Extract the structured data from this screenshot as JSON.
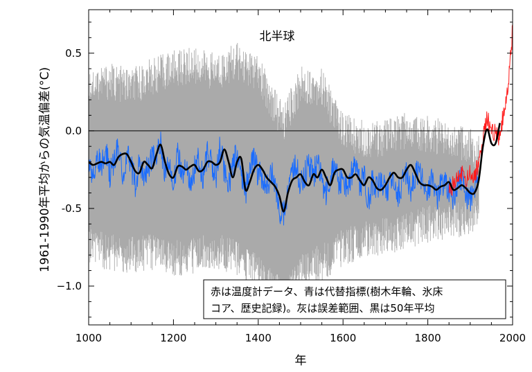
{
  "chart_data": {
    "type": "line",
    "title": "北半球",
    "xlabel": "年",
    "ylabel": "1961-1990年平均からの気温偏差(°C)",
    "xlim": [
      1000,
      2000
    ],
    "ylim": [
      -1.25,
      0.78
    ],
    "x_ticks": [
      1000,
      1200,
      1400,
      1600,
      1800,
      2000
    ],
    "x_tick_labels": [
      "1000",
      "1200",
      "1400",
      "1600",
      "1800",
      "2000"
    ],
    "y_ticks": [
      -1.0,
      -0.5,
      0.0,
      0.5
    ],
    "y_tick_labels": [
      "−1.0",
      "-0.5",
      "0.0",
      "0.5"
    ],
    "grid": false,
    "annotation": [
      "赤は温度計データ、青は代替指標(樹木年輪、氷床",
      "コア、歴史記録)。灰は誤差範囲、黒は50年平均"
    ],
    "series": [
      {
        "color": "#aaaaaa",
        "kind": "band",
        "x": [
          1000,
          1050,
          1100,
          1150,
          1200,
          1250,
          1300,
          1350,
          1400,
          1450,
          1460,
          1500,
          1550,
          1600,
          1650,
          1700,
          1750,
          1800,
          1850,
          1900,
          1920
        ],
        "upper": [
          0.3,
          0.32,
          0.28,
          0.35,
          0.4,
          0.42,
          0.38,
          0.45,
          0.36,
          0.1,
          0.05,
          0.3,
          0.28,
          0.0,
          -0.05,
          -0.05,
          0.0,
          -0.02,
          -0.05,
          -0.1,
          -0.15
        ],
        "lower": [
          -0.75,
          -0.78,
          -0.8,
          -0.78,
          -0.82,
          -0.8,
          -0.78,
          -0.82,
          -0.92,
          -1.05,
          -1.1,
          -0.9,
          -0.85,
          -0.75,
          -0.7,
          -0.68,
          -0.65,
          -0.6,
          -0.58,
          -0.55,
          -0.52
        ]
      },
      {
        "color": "#1a6cff",
        "kind": "line",
        "x": [
          1000,
          1010,
          1020,
          1030,
          1040,
          1050,
          1060,
          1070,
          1080,
          1090,
          1100,
          1110,
          1120,
          1130,
          1140,
          1150,
          1160,
          1170,
          1180,
          1190,
          1200,
          1210,
          1220,
          1230,
          1240,
          1250,
          1260,
          1270,
          1280,
          1290,
          1300,
          1310,
          1320,
          1330,
          1340,
          1350,
          1360,
          1370,
          1380,
          1390,
          1400,
          1410,
          1420,
          1430,
          1440,
          1450,
          1460,
          1470,
          1480,
          1490,
          1500,
          1510,
          1520,
          1530,
          1540,
          1550,
          1560,
          1570,
          1580,
          1590,
          1600,
          1610,
          1620,
          1630,
          1640,
          1650,
          1660,
          1670,
          1680,
          1690,
          1700,
          1710,
          1720,
          1730,
          1740,
          1750,
          1760,
          1770,
          1780,
          1790,
          1800,
          1810,
          1820,
          1830,
          1840,
          1850,
          1860,
          1870,
          1880,
          1890,
          1900,
          1910,
          1920
        ],
        "values": [
          -0.18,
          -0.3,
          -0.15,
          -0.25,
          -0.12,
          -0.28,
          -0.2,
          -0.1,
          -0.32,
          -0.15,
          -0.22,
          -0.35,
          -0.2,
          -0.28,
          -0.25,
          -0.18,
          -0.15,
          -0.08,
          -0.3,
          -0.22,
          -0.35,
          -0.15,
          -0.28,
          -0.2,
          -0.35,
          -0.25,
          -0.18,
          -0.3,
          -0.15,
          -0.2,
          -0.32,
          -0.1,
          -0.25,
          -0.35,
          -0.22,
          -0.15,
          -0.28,
          -0.4,
          -0.22,
          -0.18,
          -0.28,
          -0.3,
          -0.38,
          -0.25,
          -0.35,
          -0.5,
          -0.55,
          -0.4,
          -0.3,
          -0.22,
          -0.35,
          -0.28,
          -0.22,
          -0.3,
          -0.18,
          -0.32,
          -0.4,
          -0.28,
          -0.22,
          -0.35,
          -0.3,
          -0.4,
          -0.28,
          -0.22,
          -0.35,
          -0.3,
          -0.45,
          -0.32,
          -0.38,
          -0.28,
          -0.4,
          -0.35,
          -0.3,
          -0.42,
          -0.32,
          -0.28,
          -0.38,
          -0.3,
          -0.25,
          -0.35,
          -0.4,
          -0.3,
          -0.45,
          -0.35,
          -0.32,
          -0.38,
          -0.42,
          -0.35,
          -0.3,
          -0.4,
          -0.45,
          -0.35,
          -0.3
        ]
      },
      {
        "color": "#ff1a1a",
        "kind": "line",
        "x": [
          1850,
          1860,
          1870,
          1880,
          1890,
          1900,
          1910,
          1920,
          1930,
          1940,
          1950,
          1960,
          1970,
          1980,
          1990,
          2000
        ],
        "values": [
          -0.38,
          -0.35,
          -0.3,
          -0.28,
          -0.32,
          -0.25,
          -0.3,
          -0.2,
          -0.05,
          0.08,
          0.0,
          -0.02,
          -0.05,
          0.15,
          0.3,
          0.65
        ]
      },
      {
        "color": "#000000",
        "kind": "line",
        "x": [
          1000,
          1010,
          1020,
          1030,
          1040,
          1050,
          1060,
          1070,
          1080,
          1090,
          1100,
          1110,
          1120,
          1130,
          1140,
          1150,
          1160,
          1170,
          1180,
          1190,
          1200,
          1210,
          1220,
          1230,
          1240,
          1250,
          1260,
          1270,
          1280,
          1290,
          1300,
          1310,
          1320,
          1330,
          1340,
          1350,
          1360,
          1370,
          1380,
          1390,
          1400,
          1410,
          1420,
          1430,
          1440,
          1450,
          1460,
          1470,
          1480,
          1490,
          1500,
          1510,
          1520,
          1530,
          1540,
          1550,
          1560,
          1570,
          1580,
          1590,
          1600,
          1610,
          1620,
          1630,
          1640,
          1650,
          1660,
          1670,
          1680,
          1690,
          1700,
          1710,
          1720,
          1730,
          1740,
          1750,
          1760,
          1770,
          1780,
          1790,
          1800,
          1810,
          1820,
          1830,
          1840,
          1850,
          1860,
          1870,
          1880,
          1890,
          1900,
          1910,
          1920,
          1930,
          1940,
          1950,
          1960,
          1970
        ],
        "values": [
          -0.2,
          -0.22,
          -0.21,
          -0.2,
          -0.21,
          -0.2,
          -0.22,
          -0.17,
          -0.15,
          -0.15,
          -0.2,
          -0.26,
          -0.27,
          -0.2,
          -0.22,
          -0.24,
          -0.15,
          -0.09,
          -0.2,
          -0.28,
          -0.3,
          -0.23,
          -0.23,
          -0.25,
          -0.23,
          -0.22,
          -0.26,
          -0.25,
          -0.2,
          -0.2,
          -0.22,
          -0.2,
          -0.12,
          -0.2,
          -0.3,
          -0.2,
          -0.18,
          -0.38,
          -0.33,
          -0.25,
          -0.22,
          -0.25,
          -0.3,
          -0.33,
          -0.36,
          -0.42,
          -0.52,
          -0.4,
          -0.32,
          -0.3,
          -0.28,
          -0.33,
          -0.35,
          -0.28,
          -0.3,
          -0.25,
          -0.3,
          -0.35,
          -0.27,
          -0.25,
          -0.25,
          -0.3,
          -0.3,
          -0.28,
          -0.32,
          -0.35,
          -0.3,
          -0.32,
          -0.37,
          -0.38,
          -0.35,
          -0.3,
          -0.27,
          -0.3,
          -0.3,
          -0.25,
          -0.22,
          -0.27,
          -0.33,
          -0.35,
          -0.35,
          -0.36,
          -0.38,
          -0.36,
          -0.35,
          -0.33,
          -0.38,
          -0.37,
          -0.35,
          -0.37,
          -0.4,
          -0.4,
          -0.32,
          -0.1,
          0.01,
          -0.08,
          -0.08,
          0.05
        ]
      }
    ]
  }
}
